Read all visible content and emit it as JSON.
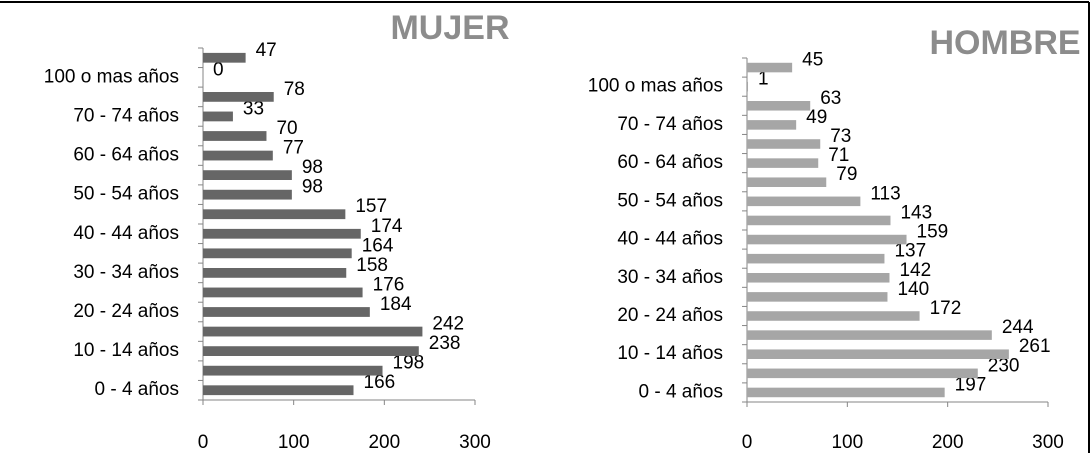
{
  "chart_data": [
    {
      "type": "bar",
      "orientation": "horizontal",
      "title": "MUJER",
      "color": "#666666",
      "categories": [
        "0 - 4 años",
        null,
        "10 - 14 años",
        null,
        "20 - 24 años",
        null,
        "30 - 34 años",
        null,
        "40 - 44 años",
        null,
        "50 - 54 años",
        null,
        "60 - 64 años",
        null,
        "70 - 74 años",
        null,
        "100 o mas años",
        null
      ],
      "values": [
        166,
        198,
        238,
        242,
        184,
        176,
        158,
        164,
        174,
        157,
        98,
        98,
        77,
        70,
        33,
        78,
        0,
        47
      ],
      "xlim": [
        0,
        300
      ],
      "xticks": [
        0,
        100,
        200,
        300
      ]
    },
    {
      "type": "bar",
      "orientation": "horizontal",
      "title": "HOMBRE",
      "color": "#a6a6a6",
      "categories": [
        "0 - 4 años",
        null,
        "10 - 14 años",
        null,
        "20 - 24 años",
        null,
        "30 - 34 años",
        null,
        "40 - 44 años",
        null,
        "50 - 54 años",
        null,
        "60 - 64 años",
        null,
        "70 - 74 años",
        null,
        "100 o mas años",
        null
      ],
      "values": [
        197,
        230,
        261,
        244,
        172,
        140,
        142,
        137,
        159,
        143,
        113,
        79,
        71,
        73,
        49,
        63,
        1,
        45
      ],
      "xlim": [
        0,
        300
      ],
      "xticks": [
        0,
        100,
        200,
        300
      ]
    }
  ]
}
